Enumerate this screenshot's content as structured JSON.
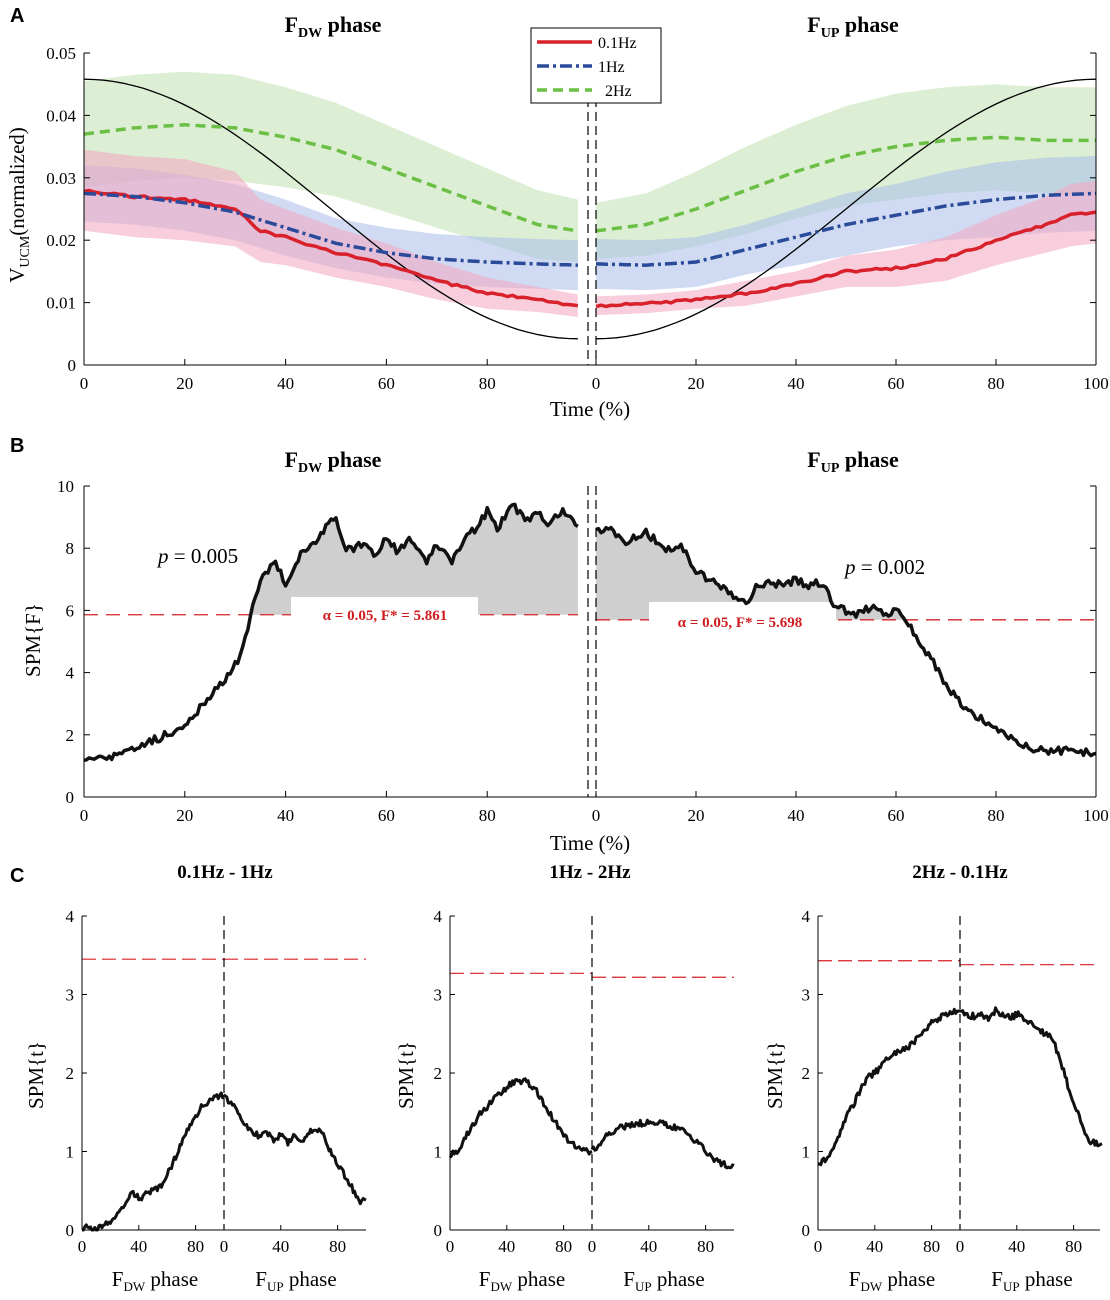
{
  "panels": {
    "A": {
      "letter": "A",
      "phase_titles": {
        "down_main": "F",
        "down_sub": "DW",
        "down_rest": " phase",
        "up_main": "F",
        "up_sub": "UP",
        "up_rest": " phase"
      },
      "ylabel_main": "V",
      "ylabel_sub": "UCM",
      "ylabel_rest": "(normalized)",
      "xlabel": "Time (%)"
    },
    "B": {
      "letter": "B",
      "phase_titles": {
        "down_main": "F",
        "down_sub": "DW",
        "down_rest": " phase",
        "up_main": "F",
        "up_sub": "UP",
        "up_rest": " phase"
      },
      "ylabel": "SPM{F}",
      "xlabel": "Time (%)",
      "p_left_italic": "p",
      "p_left_value": " = 0.005",
      "p_right_italic": "p",
      "p_right_value": " = 0.002",
      "thr_left_label": "α = 0.05, F* = 5.861",
      "thr_right_label": "α = 0.05, F* = 5.698"
    },
    "C": {
      "letter": "C",
      "ylabel": "SPM{t}",
      "xlabel_main": "F",
      "xlabel_dw": "DW",
      "xlabel_up": "UP",
      "xlabel_rest": " phase"
    }
  },
  "colors": {
    "red": "#d8212a",
    "blue": "#2a4a9a",
    "green": "#6bbf45",
    "red_band": "#f4a6c0",
    "blue_band": "#a9bde9",
    "green_band": "#bfe0b0",
    "threshold": "#d8212a",
    "shade": "#cfcfcf"
  },
  "chart_data": [
    {
      "id": "A",
      "type": "line",
      "title_left": "FDW phase",
      "title_right": "FUP phase",
      "xlabel": "Time (%)",
      "ylabel": "VUCM(normalized)",
      "ylim": [
        0,
        0.05
      ],
      "yticks": [
        0,
        0.01,
        0.02,
        0.03,
        0.04,
        0.05
      ],
      "ytick_labels": [
        "0",
        "0.01",
        "0.02",
        "0.03",
        "0.04",
        "0.05"
      ],
      "xticks": [
        0,
        20,
        40,
        60,
        80,
        100
      ],
      "xtick_labels_left": [
        "0",
        "20",
        "40",
        "60",
        "80"
      ],
      "xtick_labels_right": [
        "0",
        "20",
        "40",
        "60",
        "80",
        "100"
      ],
      "legend": [
        "0.1Hz",
        "1Hz",
        "2Hz"
      ],
      "series": [
        {
          "name": "0.1Hz",
          "color": "red",
          "style": "solid",
          "down": {
            "x": [
              0,
              10,
              20,
              30,
              35,
              40,
              50,
              60,
              70,
              80,
              90,
              98
            ],
            "y": [
              0.028,
              0.027,
              0.0265,
              0.025,
              0.0215,
              0.0205,
              0.018,
              0.016,
              0.0135,
              0.0115,
              0.0105,
              0.0095
            ],
            "band": [
              0.0065,
              0.0065,
              0.0065,
              0.006,
              0.005,
              0.0045,
              0.004,
              0.0035,
              0.003,
              0.0025,
              0.002,
              0.0018
            ]
          },
          "up": {
            "x": [
              0,
              10,
              20,
              30,
              40,
              50,
              60,
              70,
              80,
              90,
              95,
              100
            ],
            "y": [
              0.0095,
              0.0098,
              0.0105,
              0.0115,
              0.013,
              0.015,
              0.0155,
              0.017,
              0.02,
              0.0225,
              0.024,
              0.0245
            ],
            "band": [
              0.0015,
              0.0015,
              0.0015,
              0.002,
              0.002,
              0.0025,
              0.003,
              0.0035,
              0.004,
              0.0045,
              0.005,
              0.005
            ]
          }
        },
        {
          "name": "1Hz",
          "color": "blue",
          "style": "dashdot",
          "down": {
            "x": [
              0,
              10,
              20,
              30,
              40,
              50,
              60,
              70,
              80,
              90,
              98
            ],
            "y": [
              0.0275,
              0.027,
              0.026,
              0.0245,
              0.022,
              0.0195,
              0.018,
              0.017,
              0.0165,
              0.0162,
              0.016
            ],
            "band": [
              0.0045,
              0.0045,
              0.0045,
              0.0045,
              0.0045,
              0.004,
              0.004,
              0.004,
              0.004,
              0.004,
              0.004
            ]
          },
          "up": {
            "x": [
              0,
              10,
              20,
              30,
              40,
              50,
              60,
              70,
              80,
              90,
              100
            ],
            "y": [
              0.0162,
              0.016,
              0.0165,
              0.0185,
              0.0205,
              0.0225,
              0.024,
              0.0255,
              0.0265,
              0.0272,
              0.0275
            ],
            "band": [
              0.004,
              0.004,
              0.004,
              0.004,
              0.0045,
              0.005,
              0.005,
              0.0055,
              0.006,
              0.006,
              0.006
            ]
          }
        },
        {
          "name": "2Hz",
          "color": "green",
          "style": "dashed",
          "down": {
            "x": [
              0,
              10,
              20,
              30,
              40,
              50,
              60,
              70,
              80,
              90,
              98
            ],
            "y": [
              0.037,
              0.038,
              0.0385,
              0.038,
              0.0365,
              0.0345,
              0.0315,
              0.0285,
              0.0255,
              0.0225,
              0.0215
            ],
            "band": [
              0.0085,
              0.0085,
              0.0085,
              0.0085,
              0.008,
              0.0075,
              0.007,
              0.0065,
              0.006,
              0.0055,
              0.005
            ]
          },
          "up": {
            "x": [
              0,
              10,
              20,
              30,
              40,
              50,
              60,
              70,
              80,
              90,
              100
            ],
            "y": [
              0.0215,
              0.0225,
              0.025,
              0.028,
              0.031,
              0.0335,
              0.035,
              0.036,
              0.0365,
              0.036,
              0.036
            ],
            "band": [
              0.0045,
              0.005,
              0.006,
              0.007,
              0.0075,
              0.008,
              0.0085,
              0.0085,
              0.0085,
              0.0085,
              0.0085
            ]
          }
        }
      ],
      "reference_cycle": {
        "min": 0.0042,
        "max": 0.0458
      }
    },
    {
      "id": "B",
      "type": "line",
      "title_left": "FDW phase",
      "title_right": "FUP phase",
      "xlabel": "Time (%)",
      "ylabel": "SPM{F}",
      "ylim": [
        0,
        10
      ],
      "yticks": [
        0,
        2,
        4,
        6,
        8,
        10
      ],
      "ytick_labels": [
        "0",
        "2",
        "4",
        "6",
        "8",
        "10"
      ],
      "xtick_labels_left": [
        "0",
        "20",
        "40",
        "60",
        "80"
      ],
      "xtick_labels_right": [
        "0",
        "20",
        "40",
        "60",
        "80",
        "100"
      ],
      "threshold_left": 5.861,
      "threshold_right": 5.698,
      "p_left": 0.005,
      "p_right": 0.002,
      "down": {
        "x": [
          0,
          5,
          10,
          15,
          20,
          25,
          28,
          31,
          33,
          35,
          37,
          38,
          39,
          40,
          41,
          43,
          45,
          48,
          50,
          52,
          55,
          58,
          60,
          62,
          65,
          68,
          70,
          73,
          75,
          78,
          80,
          82,
          85,
          88,
          90,
          92,
          95,
          98
        ],
        "y": [
          1.1,
          1.3,
          1.6,
          1.9,
          2.3,
          3.2,
          3.8,
          4.5,
          5.8,
          6.9,
          7.4,
          7.5,
          7.3,
          6.8,
          7.2,
          7.8,
          8.0,
          8.7,
          9.0,
          7.9,
          8.1,
          7.8,
          8.4,
          7.9,
          8.3,
          7.6,
          8.1,
          7.5,
          8.2,
          8.7,
          9.2,
          8.6,
          9.4,
          8.9,
          9.1,
          8.8,
          9.2,
          8.7
        ]
      },
      "up": {
        "x": [
          0,
          3,
          6,
          10,
          14,
          17,
          20,
          22,
          25,
          28,
          30,
          32,
          35,
          38,
          40,
          42,
          45,
          48,
          50,
          52,
          55,
          58,
          60,
          62,
          65,
          68,
          70,
          73,
          76,
          80,
          84,
          88,
          92,
          96,
          100
        ],
        "y": [
          8.5,
          8.6,
          8.2,
          8.5,
          8.0,
          8.1,
          7.3,
          7.0,
          6.8,
          6.3,
          6.2,
          6.8,
          6.9,
          6.8,
          7.0,
          6.8,
          6.9,
          6.1,
          6.0,
          5.9,
          6.1,
          5.9,
          6.0,
          5.7,
          4.9,
          4.2,
          3.6,
          3.0,
          2.6,
          2.2,
          1.8,
          1.5,
          1.5,
          1.5,
          1.4
        ]
      }
    },
    {
      "id": "C1",
      "type": "line",
      "title": "0.1Hz - 1Hz",
      "ylabel": "SPM{t}",
      "ylim": [
        0,
        4
      ],
      "yticks": [
        0,
        1,
        2,
        3,
        4
      ],
      "ytick_labels": [
        "0",
        "1",
        "2",
        "3",
        "4"
      ],
      "xtick_labels_left": [
        "0",
        "40",
        "80"
      ],
      "xtick_labels_right": [
        "0",
        "40",
        "80"
      ],
      "threshold_left": 3.45,
      "threshold_right": 3.45,
      "down": {
        "x": [
          0,
          5,
          10,
          15,
          20,
          25,
          30,
          35,
          40,
          45,
          50,
          55,
          60,
          65,
          70,
          75,
          80,
          85,
          90,
          95,
          100
        ],
        "y": [
          0.0,
          0.05,
          0.0,
          0.05,
          0.1,
          0.2,
          0.3,
          0.5,
          0.4,
          0.45,
          0.5,
          0.55,
          0.7,
          0.9,
          1.1,
          1.3,
          1.45,
          1.6,
          1.65,
          1.7,
          1.72
        ]
      },
      "up": {
        "x": [
          0,
          5,
          10,
          15,
          20,
          25,
          30,
          35,
          40,
          45,
          50,
          55,
          60,
          65,
          70,
          75,
          80,
          85,
          90,
          95,
          100
        ],
        "y": [
          1.72,
          1.6,
          1.5,
          1.35,
          1.25,
          1.2,
          1.25,
          1.15,
          1.2,
          1.1,
          1.2,
          1.1,
          1.25,
          1.3,
          1.2,
          1.0,
          0.85,
          0.7,
          0.55,
          0.35,
          0.38
        ]
      }
    },
    {
      "id": "C2",
      "type": "line",
      "title": "1Hz - 2Hz",
      "ylabel": "SPM{t}",
      "ylim": [
        0,
        4
      ],
      "yticks": [
        0,
        1,
        2,
        3,
        4
      ],
      "ytick_labels": [
        "0",
        "1",
        "2",
        "3",
        "4"
      ],
      "xtick_labels_left": [
        "0",
        "40",
        "80"
      ],
      "xtick_labels_right": [
        "0",
        "40",
        "80"
      ],
      "threshold_left": 3.27,
      "threshold_right": 3.22,
      "down": {
        "x": [
          0,
          5,
          10,
          15,
          20,
          25,
          30,
          35,
          40,
          45,
          50,
          55,
          60,
          65,
          70,
          75,
          80,
          85,
          90,
          95,
          100
        ],
        "y": [
          0.95,
          1.0,
          1.15,
          1.3,
          1.45,
          1.55,
          1.65,
          1.75,
          1.82,
          1.88,
          1.9,
          1.88,
          1.8,
          1.65,
          1.5,
          1.35,
          1.2,
          1.1,
          1.05,
          1.02,
          1.0
        ]
      },
      "up": {
        "x": [
          0,
          5,
          10,
          15,
          20,
          25,
          30,
          35,
          40,
          45,
          50,
          55,
          60,
          65,
          70,
          75,
          80,
          85,
          90,
          95,
          100
        ],
        "y": [
          1.0,
          1.1,
          1.2,
          1.25,
          1.3,
          1.32,
          1.35,
          1.36,
          1.37,
          1.37,
          1.36,
          1.33,
          1.3,
          1.25,
          1.18,
          1.1,
          1.0,
          0.92,
          0.86,
          0.83,
          0.82
        ]
      }
    },
    {
      "id": "C3",
      "type": "line",
      "title": "2Hz - 0.1Hz",
      "ylabel": "SPM{t}",
      "ylim": [
        0,
        4
      ],
      "yticks": [
        0,
        1,
        2,
        3,
        4
      ],
      "ytick_labels": [
        "0",
        "1",
        "2",
        "3",
        "4"
      ],
      "xtick_labels_left": [
        "0",
        "40",
        "80"
      ],
      "xtick_labels_right": [
        "0",
        "40",
        "80"
      ],
      "threshold_left": 3.43,
      "threshold_right": 3.38,
      "down": {
        "x": [
          0,
          5,
          10,
          15,
          20,
          25,
          30,
          35,
          40,
          45,
          50,
          55,
          60,
          65,
          70,
          75,
          80,
          85,
          90,
          95,
          100
        ],
        "y": [
          0.85,
          0.9,
          1.0,
          1.2,
          1.45,
          1.6,
          1.8,
          1.95,
          2.0,
          2.1,
          2.2,
          2.25,
          2.3,
          2.35,
          2.45,
          2.55,
          2.65,
          2.7,
          2.75,
          2.78,
          2.8
        ]
      },
      "up": {
        "x": [
          0,
          5,
          10,
          15,
          20,
          25,
          30,
          35,
          40,
          45,
          50,
          55,
          60,
          65,
          70,
          75,
          80,
          85,
          90,
          95,
          100
        ],
        "y": [
          2.8,
          2.75,
          2.72,
          2.75,
          2.7,
          2.8,
          2.75,
          2.7,
          2.75,
          2.7,
          2.65,
          2.55,
          2.5,
          2.45,
          2.2,
          1.9,
          1.6,
          1.4,
          1.15,
          1.1,
          1.1
        ]
      }
    }
  ]
}
